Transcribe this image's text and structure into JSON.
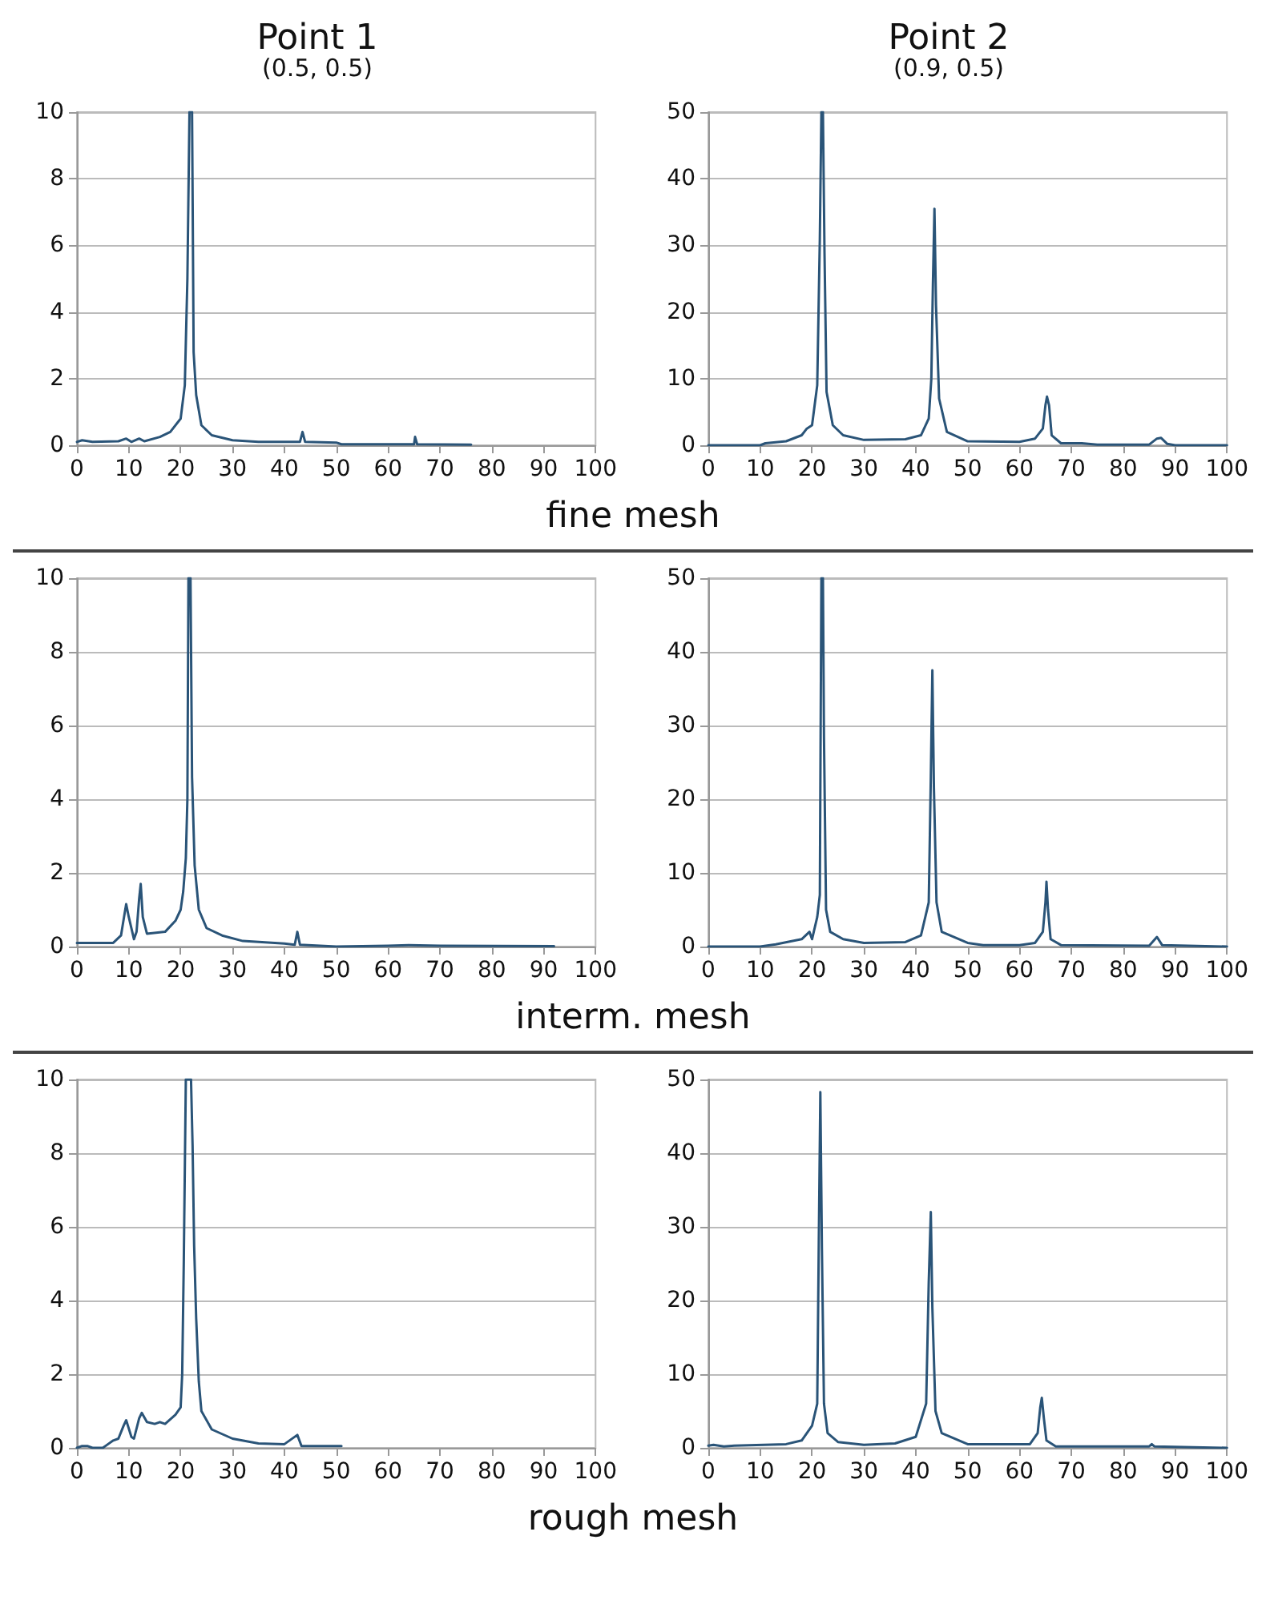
{
  "chart_data": [
    {
      "type": "line",
      "title": "Point 1",
      "subtitle": "(0.5, 0.5)",
      "annotations": [
        "fine mesh"
      ],
      "color": "#2a5478",
      "grid": "y",
      "marker": "none",
      "line_style": "solid",
      "xlim": [
        0,
        100
      ],
      "xticks": [
        0,
        10,
        20,
        30,
        40,
        50,
        60,
        70,
        80,
        90,
        100
      ],
      "ylim": [
        0,
        10
      ],
      "yticks": [
        0,
        2,
        4,
        6,
        8,
        10
      ],
      "x": [
        0,
        1,
        3,
        8,
        9.5,
        10.5,
        12,
        13,
        16,
        18,
        20,
        20.8,
        21.3,
        21.7,
        22.2,
        22.5,
        23,
        24,
        26,
        30,
        35,
        43,
        43.5,
        44,
        50,
        51,
        65,
        65.2,
        65.6,
        76
      ],
      "values": [
        0.1,
        0.15,
        0.1,
        0.12,
        0.2,
        0.1,
        0.2,
        0.12,
        0.25,
        0.4,
        0.8,
        1.8,
        5,
        10,
        10,
        2.8,
        1.5,
        0.6,
        0.3,
        0.15,
        0.1,
        0.1,
        0.4,
        0.1,
        0.08,
        0.03,
        0.03,
        0.25,
        0.03,
        0.02
      ]
    },
    {
      "type": "line",
      "title": "Point 2",
      "subtitle": "(0.9, 0.5)",
      "color": "#2a5478",
      "grid": "y",
      "marker": "none",
      "line_style": "solid",
      "xlim": [
        0,
        100
      ],
      "xticks": [
        0,
        10,
        20,
        30,
        40,
        50,
        60,
        70,
        80,
        90,
        100
      ],
      "ylim": [
        0,
        50
      ],
      "yticks": [
        0,
        10,
        20,
        30,
        40,
        50
      ],
      "x": [
        0,
        10,
        11,
        15,
        18,
        19,
        20,
        21,
        21.5,
        21.8,
        22.1,
        22.4,
        22.8,
        24,
        26,
        30,
        38,
        41,
        42.5,
        43,
        43.3,
        43.6,
        43.9,
        44.5,
        46,
        50,
        60,
        63,
        64.5,
        65,
        65.3,
        65.7,
        66.2,
        68,
        72,
        75,
        85,
        86.5,
        87.3,
        88.5,
        90,
        100
      ],
      "values": [
        0,
        0,
        0.3,
        0.6,
        1.5,
        2.5,
        3,
        9,
        31,
        50,
        50,
        29,
        8,
        3,
        1.5,
        0.8,
        0.9,
        1.5,
        4,
        10,
        24,
        35.5,
        21,
        7,
        2,
        0.6,
        0.5,
        1,
        2.5,
        6,
        7.3,
        6,
        1.5,
        0.3,
        0.3,
        0.1,
        0.1,
        1,
        1.1,
        0.2,
        0,
        0
      ]
    },
    {
      "type": "line",
      "annotations": [
        "interm. mesh"
      ],
      "color": "#2a5478",
      "grid": "y",
      "marker": "none",
      "line_style": "solid",
      "xlim": [
        0,
        100
      ],
      "xticks": [
        0,
        10,
        20,
        30,
        40,
        50,
        60,
        70,
        80,
        90,
        100
      ],
      "ylim": [
        0,
        10
      ],
      "yticks": [
        0,
        2,
        4,
        6,
        8,
        10
      ],
      "x": [
        0,
        7,
        8.5,
        9.2,
        9.5,
        10,
        11,
        11.5,
        12,
        12.3,
        12.7,
        13.5,
        17,
        19,
        20,
        20.5,
        21,
        21.3,
        21.5,
        21.9,
        22.2,
        22.7,
        23.5,
        25,
        28,
        32,
        40,
        42,
        42.5,
        43,
        50,
        60,
        64,
        70,
        92
      ],
      "values": [
        0.1,
        0.1,
        0.3,
        0.9,
        1.15,
        0.8,
        0.2,
        0.4,
        1.3,
        1.7,
        0.8,
        0.35,
        0.4,
        0.7,
        1,
        1.5,
        2.4,
        4,
        10,
        10,
        4.6,
        2.2,
        1,
        0.5,
        0.3,
        0.15,
        0.08,
        0.05,
        0.4,
        0.05,
        0,
        0.02,
        0.04,
        0.02,
        0.01
      ]
    },
    {
      "type": "line",
      "color": "#2a5478",
      "grid": "y",
      "marker": "none",
      "line_style": "solid",
      "xlim": [
        0,
        100
      ],
      "xticks": [
        0,
        10,
        20,
        30,
        40,
        50,
        60,
        70,
        80,
        90,
        100
      ],
      "ylim": [
        0,
        50
      ],
      "yticks": [
        0,
        10,
        20,
        30,
        40,
        50
      ],
      "x": [
        0,
        10,
        13,
        18,
        19.5,
        20,
        21,
        21.5,
        21.8,
        22.1,
        22.3,
        22.7,
        23.5,
        26,
        30,
        38,
        41,
        42.5,
        42.9,
        43.2,
        43.5,
        44,
        45,
        50,
        53,
        60,
        63,
        64.5,
        65,
        65.2,
        65.5,
        66,
        68,
        85,
        86.5,
        87.5,
        100
      ],
      "values": [
        0,
        0,
        0.3,
        1,
        2,
        1,
        4,
        7,
        50,
        50,
        28.5,
        5,
        2,
        1,
        0.5,
        0.6,
        1.5,
        6,
        23,
        37.5,
        21.5,
        6,
        2,
        0.5,
        0.2,
        0.2,
        0.5,
        2,
        6,
        8.8,
        5,
        1,
        0.2,
        0.1,
        1.3,
        0.2,
        0
      ]
    },
    {
      "type": "line",
      "annotations": [
        "rough mesh"
      ],
      "color": "#2a5478",
      "grid": "y",
      "marker": "none",
      "line_style": "solid",
      "xlim": [
        0,
        100
      ],
      "xticks": [
        0,
        10,
        20,
        30,
        40,
        50,
        60,
        70,
        80,
        90,
        100
      ],
      "ylim": [
        0,
        10
      ],
      "yticks": [
        0,
        2,
        4,
        6,
        8,
        10
      ],
      "x": [
        0,
        1,
        2,
        3,
        5,
        6,
        7,
        8,
        9,
        9.5,
        10.5,
        11,
        12,
        12.5,
        13.5,
        15,
        16,
        17,
        19,
        20,
        20.3,
        20.6,
        21,
        22,
        22.3,
        22.6,
        23,
        23.5,
        24,
        26,
        30,
        35,
        40,
        42.5,
        43.3,
        51
      ],
      "values": [
        0,
        0.05,
        0.05,
        0,
        0,
        0.1,
        0.2,
        0.25,
        0.6,
        0.75,
        0.3,
        0.25,
        0.8,
        0.95,
        0.7,
        0.65,
        0.7,
        0.65,
        0.9,
        1.1,
        2,
        5,
        10,
        10,
        8.2,
        5.5,
        3.5,
        1.8,
        1,
        0.5,
        0.25,
        0.12,
        0.1,
        0.35,
        0.05,
        0.05
      ]
    },
    {
      "type": "line",
      "color": "#2a5478",
      "grid": "y",
      "marker": "none",
      "line_style": "solid",
      "xlim": [
        0,
        100
      ],
      "xticks": [
        0,
        10,
        20,
        30,
        40,
        50,
        60,
        70,
        80,
        90,
        100
      ],
      "ylim": [
        0,
        50
      ],
      "yticks": [
        0,
        10,
        20,
        30,
        40,
        50
      ],
      "x": [
        0,
        1,
        3,
        5,
        15,
        18,
        20,
        21,
        21.3,
        21.6,
        21.9,
        22.3,
        23,
        25,
        30,
        36,
        40,
        42,
        42.5,
        42.9,
        43.2,
        43.8,
        45,
        50,
        62,
        63.5,
        64,
        64.3,
        64.7,
        65.2,
        67,
        85,
        85.5,
        86,
        100
      ],
      "values": [
        0.3,
        0.4,
        0.2,
        0.3,
        0.5,
        1,
        3,
        6,
        28,
        48.3,
        27,
        6,
        2,
        0.8,
        0.4,
        0.6,
        1.5,
        6,
        22.5,
        32,
        19,
        5,
        2,
        0.5,
        0.5,
        2,
        5.5,
        6.8,
        4,
        1,
        0.2,
        0.2,
        0.5,
        0.2,
        0
      ]
    }
  ]
}
